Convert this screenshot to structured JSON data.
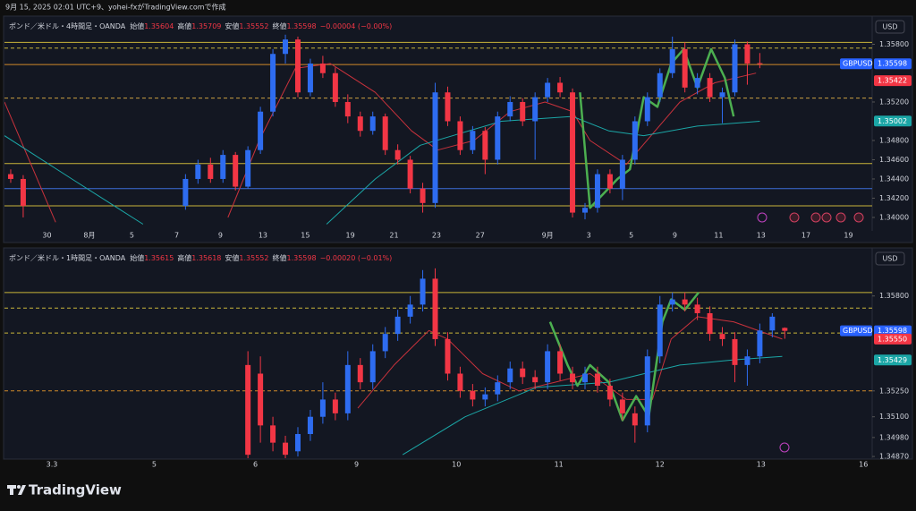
{
  "header": "9月 15, 2025 02:01 UTC+9、yohei-fxがTradingView.comで作成",
  "footer": "TradingView",
  "chart_data": [
    {
      "type": "candlestick",
      "legend": {
        "symbol": "ポンド／米ドル・4時間足・OANDA",
        "ohlc": [
          {
            "name": "始値",
            "value": 1.35604
          },
          {
            "name": "高値",
            "value": 1.35709
          },
          {
            "name": "安値",
            "value": 1.35552
          },
          {
            "name": "終値",
            "value": 1.35598
          }
        ],
        "change": "−0.00004 (−0.00%)"
      },
      "currency": "USD",
      "symbol_badge": "GBPUSD",
      "up_color": "#2e6cf0",
      "down_color": "#f23645",
      "xlim": [
        -0.5,
        69
      ],
      "ylim": [
        1.3386,
        1.36
      ],
      "xticks": [
        {
          "value": 2.9,
          "label": "30"
        },
        {
          "value": 6.3,
          "label": "8月"
        },
        {
          "value": 9.7,
          "label": "5"
        },
        {
          "value": 13.3,
          "label": "7"
        },
        {
          "value": 16.8,
          "label": "9"
        },
        {
          "value": 20.2,
          "label": "13"
        },
        {
          "value": 23.6,
          "label": "15"
        },
        {
          "value": 27.2,
          "label": "19"
        },
        {
          "value": 30.7,
          "label": "21"
        },
        {
          "value": 34.1,
          "label": "23"
        },
        {
          "value": 37.6,
          "label": "27"
        },
        {
          "value": 43.0,
          "label": "9月"
        },
        {
          "value": 46.3,
          "label": "3"
        },
        {
          "value": 49.7,
          "label": "5"
        },
        {
          "value": 53.2,
          "label": "9"
        },
        {
          "value": 56.7,
          "label": "11"
        },
        {
          "value": 60.1,
          "label": "13"
        },
        {
          "value": 63.7,
          "label": "17"
        },
        {
          "value": 67.1,
          "label": "19"
        }
      ],
      "yticks": [
        {
          "value": 1.34,
          "label": "1.34000"
        },
        {
          "value": 1.342,
          "label": "1.34200"
        },
        {
          "value": 1.344,
          "label": "1.34400"
        },
        {
          "value": 1.346,
          "label": "1.34600"
        },
        {
          "value": 1.348,
          "label": "1.34800"
        },
        {
          "value": 1.352,
          "label": "1.35200"
        },
        {
          "value": 1.358,
          "label": "1.35800"
        }
      ],
      "levels": [
        {
          "value": 1.3582,
          "color": "#c9b53a",
          "dashed": false
        },
        {
          "value": 1.3576,
          "color": "#c9b53a",
          "dashed": true
        },
        {
          "value": 1.3559,
          "color": "#d08a2a",
          "dashed": false
        },
        {
          "value": 1.3524,
          "color": "#c9a040",
          "dashed": true
        },
        {
          "value": 1.3456,
          "color": "#c9b53a",
          "dashed": false
        },
        {
          "value": 1.343,
          "color": "#3d6fd9",
          "dashed": false
        },
        {
          "value": 1.3412,
          "color": "#c9b53a",
          "dashed": false
        }
      ],
      "price_labels": [
        {
          "value": 1.35598,
          "color": "#2962ff"
        },
        {
          "value": 1.35422,
          "color": "#f23645"
        },
        {
          "value": 1.35002,
          "color": "#1ba6a6"
        }
      ],
      "open": [
        1.3445,
        1.344,
        null,
        null,
        null,
        null,
        null,
        null,
        null,
        null,
        null,
        null,
        null,
        null,
        1.3412,
        1.344,
        1.3455,
        1.344,
        1.3465,
        1.3432,
        1.347,
        1.351,
        1.357,
        1.3585,
        1.353,
        1.356,
        1.355,
        1.352,
        1.3505,
        1.349,
        1.3505,
        1.347,
        1.346,
        1.343,
        1.3415,
        1.353,
        1.35,
        1.347,
        1.349,
        1.346,
        1.3505,
        1.352,
        1.35,
        1.3525,
        1.354,
        1.353,
        1.3405,
        1.341,
        1.3445,
        1.343,
        1.346,
        1.35,
        1.3525,
        1.355,
        1.3575,
        1.3535,
        1.3545,
        1.3525,
        1.353,
        1.358,
        1.35604
      ],
      "high": [
        1.345,
        1.3444,
        null,
        null,
        null,
        null,
        null,
        null,
        null,
        null,
        null,
        null,
        null,
        null,
        1.3445,
        1.346,
        1.3462,
        1.347,
        1.3468,
        1.3474,
        1.3515,
        1.3575,
        1.359,
        1.3588,
        1.3565,
        1.3568,
        1.3556,
        1.3528,
        1.351,
        1.351,
        1.3508,
        1.3476,
        1.3464,
        1.3436,
        1.354,
        1.3536,
        1.3505,
        1.3495,
        1.3494,
        1.351,
        1.3526,
        1.3524,
        1.353,
        1.3545,
        1.3546,
        1.3534,
        1.3415,
        1.345,
        1.345,
        1.3465,
        1.3505,
        1.353,
        1.3555,
        1.3588,
        1.3582,
        1.355,
        1.355,
        1.3535,
        1.3585,
        1.3583,
        1.35709
      ],
      "low": [
        1.3436,
        1.34,
        null,
        null,
        null,
        null,
        null,
        null,
        null,
        null,
        null,
        null,
        null,
        null,
        1.3408,
        1.3435,
        1.3436,
        1.3436,
        1.3428,
        1.343,
        1.3466,
        1.3505,
        1.356,
        1.3525,
        1.3526,
        1.3545,
        1.3515,
        1.3498,
        1.3484,
        1.3486,
        1.3465,
        1.3455,
        1.3425,
        1.3405,
        1.341,
        1.3495,
        1.3465,
        1.3466,
        1.3445,
        1.3455,
        1.35,
        1.3495,
        1.346,
        1.352,
        1.3525,
        1.34,
        1.3398,
        1.3405,
        1.3425,
        1.3418,
        1.3455,
        1.3495,
        1.352,
        1.3545,
        1.353,
        1.3528,
        1.352,
        1.3498,
        1.3526,
        1.3538,
        1.35552
      ],
      "close": [
        1.344,
        1.3412,
        null,
        null,
        null,
        null,
        null,
        null,
        null,
        null,
        null,
        null,
        null,
        null,
        1.344,
        1.3455,
        1.344,
        1.3465,
        1.3432,
        1.347,
        1.351,
        1.357,
        1.3585,
        1.353,
        1.356,
        1.355,
        1.352,
        1.3505,
        1.349,
        1.3505,
        1.347,
        1.346,
        1.343,
        1.3415,
        1.353,
        1.35,
        1.347,
        1.349,
        1.346,
        1.3505,
        1.352,
        1.35,
        1.3525,
        1.354,
        1.353,
        1.3405,
        1.341,
        1.3445,
        1.343,
        1.346,
        1.35,
        1.3525,
        1.355,
        1.3575,
        1.3535,
        1.3545,
        1.3525,
        1.353,
        1.358,
        1.356,
        1.35598
      ],
      "lines": [
        {
          "color": "#c8323c",
          "width": 1,
          "x": [
            -0.5,
            3.6,
            null,
            17.4,
            19.9,
            22.8,
            25.6,
            29.2,
            32.1,
            34.2,
            37.1,
            40.0,
            42.8,
            45.0,
            46.4,
            49.3,
            53.6,
            56.4,
            59.7
          ],
          "values": [
            1.352,
            1.3395,
            null,
            1.34,
            1.348,
            1.3555,
            1.356,
            1.353,
            1.349,
            1.347,
            1.348,
            1.351,
            1.352,
            1.351,
            1.348,
            1.3455,
            1.352,
            1.354,
            1.355
          ]
        },
        {
          "color": "#1ba6a6",
          "width": 1,
          "x": [
            -0.5,
            4.9,
            10.6,
            null,
            25.3,
            29.2,
            32.8,
            39.3,
            45.0,
            47.9,
            50.7,
            55.0,
            60.0
          ],
          "values": [
            1.3485,
            1.344,
            1.3393,
            null,
            1.3393,
            1.344,
            1.3475,
            1.35,
            1.3505,
            1.349,
            1.3485,
            1.3495,
            1.35
          ]
        },
        {
          "color": "#4caf50",
          "width": 2.5,
          "x": [
            45.6,
            46.4,
            48.6,
            49.6,
            50.7,
            51.8,
            52.9,
            53.9,
            55.0,
            56.1,
            57.2,
            57.9
          ],
          "values": [
            1.353,
            1.341,
            1.344,
            1.345,
            1.3525,
            1.3515,
            1.356,
            1.3575,
            1.3535,
            1.3575,
            1.3545,
            1.3505
          ]
        }
      ]
    },
    {
      "type": "candlestick",
      "legend": {
        "symbol": "ポンド／米ドル・1時間足・OANDA",
        "ohlc": [
          {
            "name": "始値",
            "value": 1.35615
          },
          {
            "name": "高値",
            "value": 1.35618
          },
          {
            "name": "安値",
            "value": 1.35552
          },
          {
            "name": "終値",
            "value": 1.35598
          }
        ],
        "change": "−0.00020 (−0.01%)"
      },
      "currency": "USD",
      "symbol_badge": "GBPUSD",
      "up_color": "#2e6cf0",
      "down_color": "#f23645",
      "xlim": [
        -0.5,
        69
      ],
      "ylim": [
        1.3486,
        1.3598
      ],
      "xticks": [
        3.3,
        {
          "value": 11.5,
          "label": "5"
        },
        {
          "value": 19.6,
          "label": "6"
        },
        {
          "value": 27.7,
          "label": "9"
        },
        {
          "value": 35.7,
          "label": "10"
        },
        {
          "value": 43.9,
          "label": "11"
        },
        {
          "value": 52.0,
          "label": "12"
        },
        {
          "value": 60.1,
          "label": "13"
        },
        {
          "value": 68.3,
          "label": "16"
        }
      ],
      "yticks": [
        {
          "value": 1.3487,
          "label": "1.34870"
        },
        {
          "value": 1.3498,
          "label": "1.34980"
        },
        {
          "value": 1.351,
          "label": "1.35100"
        },
        {
          "value": 1.3525,
          "label": "1.35250"
        },
        {
          "value": 1.358,
          "label": "1.35800"
        }
      ],
      "levels": [
        {
          "value": 1.3582,
          "color": "#c9b53a",
          "dashed": false
        },
        {
          "value": 1.3573,
          "color": "#c9b53a",
          "dashed": true
        },
        {
          "value": 1.35585,
          "color": "#c9b53a",
          "dashed": true
        },
        {
          "value": 1.3525,
          "color": "#d08a2a",
          "dashed": true
        }
      ],
      "price_labels": [
        {
          "value": 1.35598,
          "color": "#2962ff"
        },
        {
          "value": 1.3555,
          "label": "1.35550",
          "color": "#f23645"
        },
        {
          "value": 1.35429,
          "color": "#1ba6a6"
        }
      ],
      "open": [
        null,
        null,
        null,
        null,
        null,
        null,
        null,
        null,
        null,
        null,
        null,
        null,
        null,
        null,
        null,
        null,
        null,
        null,
        null,
        1.354,
        1.3535,
        1.3505,
        1.3495,
        1.349,
        1.35,
        1.351,
        1.352,
        1.3512,
        1.354,
        1.353,
        1.3548,
        1.3558,
        1.3568,
        1.3575,
        1.359,
        1.3555,
        1.3535,
        1.3525,
        1.352,
        1.3523,
        1.353,
        1.3538,
        1.3533,
        1.353,
        1.3548,
        1.3535,
        1.353,
        1.3535,
        1.3528,
        1.352,
        1.3512,
        1.3505,
        1.3545,
        1.3575,
        1.3578,
        1.3575,
        1.357,
        1.3558,
        1.3555,
        1.354,
        1.3545,
        1.356,
        1.35615
      ],
      "high": [
        null,
        null,
        null,
        null,
        null,
        null,
        null,
        null,
        null,
        null,
        null,
        null,
        null,
        null,
        null,
        null,
        null,
        null,
        null,
        1.3548,
        1.3545,
        1.351,
        1.3499,
        1.3504,
        1.3514,
        1.353,
        1.3524,
        1.3548,
        1.3544,
        1.3552,
        1.3562,
        1.3572,
        1.358,
        1.3595,
        1.3596,
        1.3559,
        1.3539,
        1.3529,
        1.3527,
        1.3534,
        1.3542,
        1.3542,
        1.3537,
        1.3552,
        1.3552,
        1.3539,
        1.3539,
        1.3539,
        1.3532,
        1.3524,
        1.3516,
        1.3549,
        1.358,
        1.3582,
        1.3582,
        1.3579,
        1.3574,
        1.3562,
        1.3559,
        1.3549,
        1.3564,
        1.357,
        1.35618
      ],
      "low": [
        null,
        null,
        null,
        null,
        null,
        null,
        null,
        null,
        null,
        null,
        null,
        null,
        null,
        null,
        null,
        null,
        null,
        null,
        null,
        1.3486,
        1.3495,
        1.349,
        1.3486,
        1.3487,
        1.3496,
        1.3506,
        1.3508,
        1.3508,
        1.3526,
        1.3526,
        1.3544,
        1.3554,
        1.3564,
        1.3571,
        1.3551,
        1.3531,
        1.3521,
        1.3516,
        1.3516,
        1.3519,
        1.3526,
        1.3529,
        1.3526,
        1.3526,
        1.3531,
        1.3526,
        1.3526,
        1.3524,
        1.3516,
        1.3508,
        1.3495,
        1.3501,
        1.3541,
        1.3571,
        1.3571,
        1.3566,
        1.3554,
        1.3551,
        1.353,
        1.3528,
        1.3541,
        1.3556,
        1.35552
      ],
      "close": [
        null,
        null,
        null,
        null,
        null,
        null,
        null,
        null,
        null,
        null,
        null,
        null,
        null,
        null,
        null,
        null,
        null,
        null,
        null,
        1.3488,
        1.3505,
        1.3495,
        1.3488,
        1.35,
        1.351,
        1.352,
        1.3512,
        1.354,
        1.353,
        1.3548,
        1.3558,
        1.3568,
        1.3575,
        1.359,
        1.3555,
        1.3535,
        1.3525,
        1.352,
        1.3523,
        1.353,
        1.3538,
        1.3533,
        1.353,
        1.3548,
        1.3535,
        1.353,
        1.3535,
        1.3528,
        1.352,
        1.3512,
        1.3505,
        1.3545,
        1.3575,
        1.3578,
        1.3575,
        1.357,
        1.3558,
        1.3555,
        1.354,
        1.3545,
        1.356,
        1.3568,
        1.35598
      ],
      "lines": [
        {
          "color": "#c8323c",
          "width": 1,
          "x": [
            27.8,
            30.7,
            33.5,
            35.0,
            37.8,
            40.7,
            43.6,
            46.4,
            49.3,
            51.4,
            52.9,
            55.0,
            57.9,
            61.8
          ],
          "values": [
            1.3515,
            1.354,
            1.356,
            1.3555,
            1.3535,
            1.3525,
            1.353,
            1.3535,
            1.352,
            1.352,
            1.3555,
            1.3568,
            1.3565,
            1.3555
          ]
        },
        {
          "color": "#1ba6a6",
          "width": 1,
          "x": [
            31.4,
            36.4,
            42.1,
            47.9,
            53.6,
            57.9,
            61.8
          ],
          "values": [
            1.3488,
            1.351,
            1.3527,
            1.353,
            1.354,
            1.3543,
            1.3545
          ]
        },
        {
          "color": "#4caf50",
          "width": 2.5,
          "x": [
            43.2,
            44.6,
            45.4,
            46.4,
            47.9,
            49.0,
            50.1,
            51.1,
            52.2,
            52.9,
            54.0,
            55.1
          ],
          "values": [
            1.3565,
            1.354,
            1.3528,
            1.354,
            1.353,
            1.3508,
            1.3522,
            1.351,
            1.3565,
            1.3578,
            1.3572,
            1.3582
          ]
        }
      ]
    }
  ]
}
